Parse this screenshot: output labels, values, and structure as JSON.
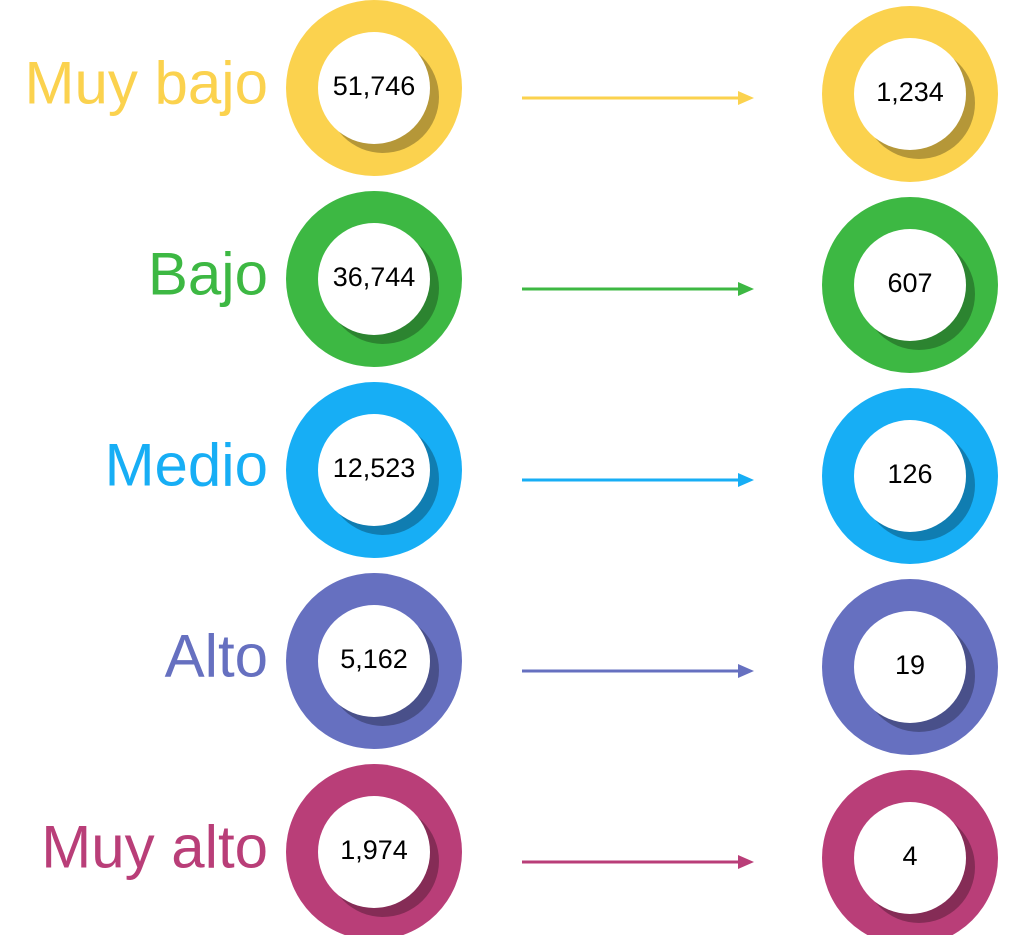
{
  "rows": [
    {
      "label": "Muy bajo",
      "left": "51,746",
      "right": "1,234",
      "color": "#fbd24e"
    },
    {
      "label": "Bajo",
      "left": "36,744",
      "right": "607",
      "color": "#3db843"
    },
    {
      "label": "Medio",
      "left": "12,523",
      "right": "126",
      "color": "#17aef5"
    },
    {
      "label": "Alto",
      "left": "5,162",
      "right": "19",
      "color": "#6670c0"
    },
    {
      "label": "Muy alto",
      "left": "1,974",
      "right": "4",
      "color": "#b93e78"
    }
  ]
}
